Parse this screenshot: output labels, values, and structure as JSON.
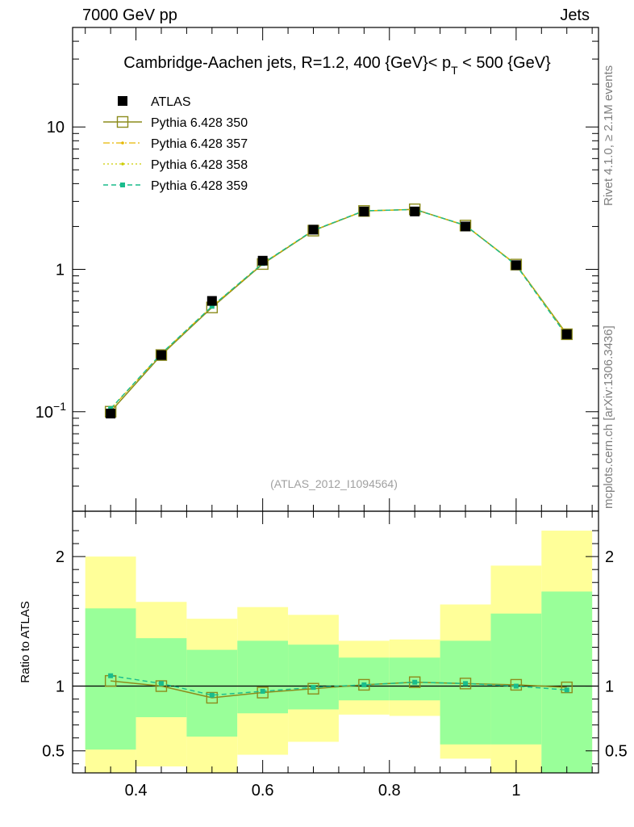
{
  "header": {
    "left": "7000 GeV pp",
    "right": "Jets"
  },
  "side": {
    "rivet": "Rivet 4.1.0, ≥ 2.1M events",
    "mcplots": "mcplots.cern.ch [arXiv:1306.3436]"
  },
  "chart_data": [
    {
      "type": "scatter",
      "title": "Cambridge-Aachen jets, R=1.2,  400 {GeV}< p_T < 500 {GeV}",
      "title_parts": {
        "main": "Cambridge-Aachen jets, R=1.2,  400 {GeV}< p",
        "sub": "T",
        "tail": " < 500 {GeV}"
      },
      "watermark": "(ATLAS_2012_I1094564)",
      "xlim": [
        0.3,
        1.13
      ],
      "ylim": [
        0.02,
        50
      ],
      "yscale": "log",
      "xticks": [
        0.4,
        0.6,
        0.8,
        1.0
      ],
      "yticks": [
        {
          "v": 0.1,
          "base": "10",
          "exp": "−1"
        },
        {
          "v": 1,
          "label": "1"
        },
        {
          "v": 10,
          "label": "10"
        }
      ],
      "x": [
        0.36,
        0.44,
        0.52,
        0.6,
        0.68,
        0.76,
        0.84,
        0.92,
        1.0,
        1.08
      ],
      "series": [
        {
          "name": "ATLAS",
          "color": "#000000",
          "values": [
            0.097,
            0.25,
            0.6,
            1.15,
            1.9,
            2.55,
            2.55,
            2.0,
            1.07,
            0.35
          ]
        },
        {
          "name": "Pythia 6.428 350",
          "color": "#8c8c1c",
          "values": [
            0.1,
            0.25,
            0.54,
            1.09,
            1.87,
            2.57,
            2.64,
            2.03,
            1.08,
            0.35
          ]
        },
        {
          "name": "Pythia 6.428 357",
          "color": "#e6b800",
          "values": [
            0.104,
            0.255,
            0.55,
            1.1,
            1.88,
            2.58,
            2.63,
            2.04,
            1.08,
            0.345
          ]
        },
        {
          "name": "Pythia 6.428 358",
          "color": "#cccc00",
          "values": [
            0.104,
            0.255,
            0.55,
            1.1,
            1.88,
            2.58,
            2.63,
            2.04,
            1.08,
            0.345
          ]
        },
        {
          "name": "Pythia 6.428 359",
          "color": "#1abc8c",
          "values": [
            0.105,
            0.256,
            0.55,
            1.1,
            1.88,
            2.58,
            2.63,
            2.04,
            1.07,
            0.34
          ]
        }
      ]
    },
    {
      "type": "area",
      "ylabel": "Ratio to ATLAS",
      "xlim": [
        0.3,
        1.13
      ],
      "ylim": [
        0.33,
        2.35
      ],
      "xticks": [
        0.4,
        0.6,
        0.8,
        1.0
      ],
      "xtick_labels": [
        "0.4",
        "0.6",
        "0.8",
        "1"
      ],
      "yticks": [
        {
          "v": 0.5,
          "label": "0.5"
        },
        {
          "v": 1,
          "label": "1"
        },
        {
          "v": 2,
          "label": "2"
        }
      ],
      "bins": [
        [
          0.32,
          0.4
        ],
        [
          0.4,
          0.48
        ],
        [
          0.48,
          0.56
        ],
        [
          0.56,
          0.64
        ],
        [
          0.64,
          0.72
        ],
        [
          0.72,
          0.8
        ],
        [
          0.8,
          0.88
        ],
        [
          0.88,
          0.96
        ],
        [
          0.96,
          1.04
        ],
        [
          1.04,
          1.12
        ]
      ],
      "band_yellow": [
        [
          0.2,
          2.0
        ],
        [
          0.38,
          1.65
        ],
        [
          0.2,
          1.52
        ],
        [
          0.47,
          1.61
        ],
        [
          0.57,
          1.55
        ],
        [
          0.78,
          1.35
        ],
        [
          0.77,
          1.36
        ],
        [
          0.44,
          1.63
        ],
        [
          0.2,
          1.93
        ],
        [
          0.2,
          2.2
        ]
      ],
      "band_green": [
        [
          0.51,
          1.6
        ],
        [
          0.76,
          1.37
        ],
        [
          0.61,
          1.28
        ],
        [
          0.79,
          1.35
        ],
        [
          0.82,
          1.32
        ],
        [
          0.89,
          1.22
        ],
        [
          0.89,
          1.22
        ],
        [
          0.55,
          1.35
        ],
        [
          0.55,
          1.56
        ],
        [
          0.2,
          1.73
        ]
      ],
      "band_colors": {
        "yellow": "#ffff99",
        "green": "#99ff99"
      },
      "series": [
        {
          "name": "Pythia 6.428 350",
          "color": "#8c8c1c",
          "values": [
            1.04,
            1.0,
            0.91,
            0.95,
            0.98,
            1.01,
            1.03,
            1.02,
            1.01,
            0.99
          ]
        },
        {
          "name": "Pythia 6.428 359",
          "color": "#1abc8c",
          "values": [
            1.08,
            1.02,
            0.93,
            0.96,
            0.99,
            1.01,
            1.03,
            1.02,
            1.0,
            0.97
          ]
        }
      ]
    }
  ]
}
